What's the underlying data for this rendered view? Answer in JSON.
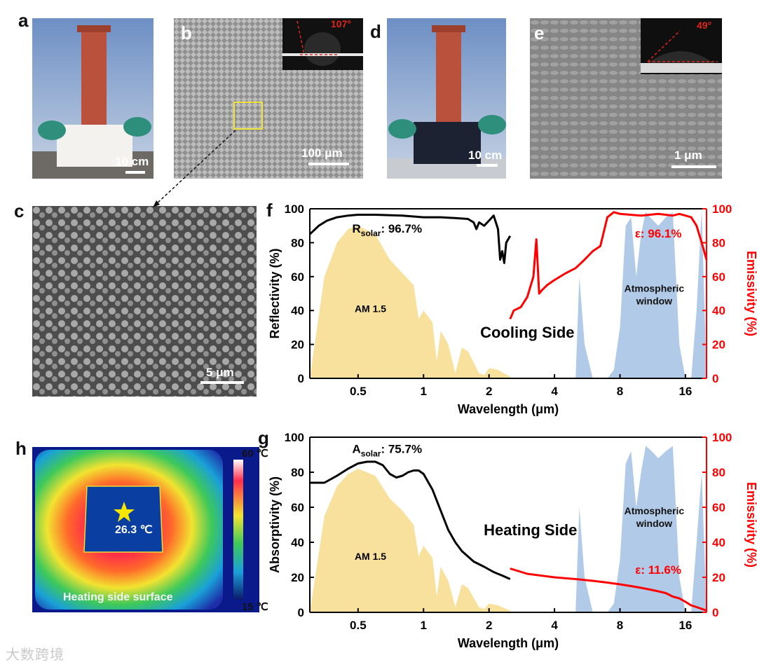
{
  "panel_labels": {
    "a": "a",
    "b": "b",
    "c": "c",
    "d": "d",
    "e": "e",
    "f": "f",
    "g": "g",
    "h": "h"
  },
  "panel_a": {
    "scale": "10 cm"
  },
  "panel_b": {
    "scale": "100 μm",
    "contact_angle": "107°"
  },
  "panel_c": {
    "scale": "5 μm"
  },
  "panel_d": {
    "scale": "10 cm"
  },
  "panel_e": {
    "scale": "1 μm",
    "contact_angle": "49°"
  },
  "panel_h": {
    "max_temp": "60 ℃",
    "min_temp": "15 ℃",
    "spot_temp": "26.3 ℃",
    "caption": "Heating side surface"
  },
  "colors": {
    "black_curve": "#000000",
    "red_curve": "#ff0000",
    "am15_fill": "#f7dc8c",
    "window_fill": "#a9c4e4"
  },
  "chart_data": [
    {
      "id": "f",
      "type": "line",
      "title": "Cooling Side",
      "xlabel": "Wavelength (μm)",
      "ylabel": "Reflectivity (%)",
      "ylabel_right": "Emissivity (%)",
      "x_scale": "log",
      "xlim": [
        0.3,
        20
      ],
      "ylim": [
        0,
        100
      ],
      "x_ticks": [
        0.5,
        1,
        2,
        4,
        8,
        16
      ],
      "x_tick_labels": [
        "0.5",
        "1",
        "2",
        "4",
        "8",
        "16"
      ],
      "y_ticks": [
        0,
        20,
        40,
        60,
        80,
        100
      ],
      "y_tick_labels": [
        "0",
        "20",
        "40",
        "60",
        "80",
        "100"
      ],
      "annotations": {
        "solar_label": "R",
        "solar_sub": "solar",
        "solar_value": ": 96.7%",
        "emis_label": "ε: 96.1%",
        "am15_label": "AM 1.5",
        "window_label1": "Atmospheric",
        "window_label2": "window"
      },
      "series": [
        {
          "name": "Reflectivity",
          "color": "#000000",
          "x": [
            0.3,
            0.33,
            0.36,
            0.4,
            0.45,
            0.5,
            0.6,
            0.8,
            1.0,
            1.2,
            1.4,
            1.6,
            1.7,
            1.75,
            1.8,
            1.9,
            2.0,
            2.1,
            2.2,
            2.25,
            2.3,
            2.35,
            2.4,
            2.5
          ],
          "y": [
            85,
            90,
            93,
            95,
            96,
            96.5,
            96.5,
            96,
            95,
            95,
            94.5,
            94,
            92,
            88,
            92,
            90,
            93,
            96,
            88,
            70,
            75,
            68,
            80,
            84
          ]
        },
        {
          "name": "Emissivity",
          "color": "#ff0000",
          "x": [
            2.5,
            2.6,
            2.8,
            3.0,
            3.2,
            3.3,
            3.4,
            3.5,
            3.7,
            4.0,
            4.5,
            5.0,
            5.5,
            6.0,
            6.5,
            7.0,
            7.5,
            8,
            10,
            12,
            14,
            15,
            16,
            17,
            18,
            19,
            20
          ],
          "y": [
            35,
            40,
            42,
            48,
            60,
            82,
            50,
            52,
            55,
            58,
            62,
            65,
            70,
            75,
            78,
            95,
            98,
            97,
            96,
            97,
            96,
            97,
            96,
            95,
            90,
            80,
            70
          ]
        }
      ],
      "am15": {
        "x": [
          0.3,
          0.35,
          0.4,
          0.45,
          0.5,
          0.6,
          0.7,
          0.8,
          0.9,
          0.95,
          1.0,
          1.1,
          1.15,
          1.2,
          1.3,
          1.4,
          1.5,
          1.6,
          1.8,
          1.9,
          2.0,
          2.2,
          2.5
        ],
        "y": [
          0,
          60,
          80,
          88,
          90,
          85,
          70,
          62,
          55,
          35,
          40,
          33,
          10,
          28,
          20,
          3,
          18,
          16,
          3,
          2,
          6,
          5,
          1
        ]
      },
      "window": {
        "x": [
          5,
          5.2,
          5.5,
          6,
          7,
          7.5,
          8,
          8.5,
          9,
          9.5,
          10,
          10.5,
          11,
          12,
          13,
          14,
          15,
          16,
          17,
          18,
          19,
          20
        ],
        "y": [
          0,
          60,
          20,
          0,
          0,
          5,
          30,
          90,
          95,
          60,
          85,
          98,
          95,
          90,
          95,
          98,
          20,
          0,
          0,
          40,
          100,
          0
        ]
      }
    },
    {
      "id": "g",
      "type": "line",
      "title": "Heating Side",
      "xlabel": "Wavelength (μm)",
      "ylabel": "Absorptivity (%)",
      "ylabel_right": "Emissivity (%)",
      "x_scale": "log",
      "xlim": [
        0.3,
        20
      ],
      "ylim": [
        0,
        100
      ],
      "x_ticks": [
        0.5,
        1,
        2,
        4,
        8,
        16
      ],
      "x_tick_labels": [
        "0.5",
        "1",
        "2",
        "4",
        "8",
        "16"
      ],
      "y_ticks": [
        0,
        20,
        40,
        60,
        80,
        100
      ],
      "y_tick_labels": [
        "0",
        "20",
        "40",
        "60",
        "80",
        "100"
      ],
      "annotations": {
        "solar_label": "A",
        "solar_sub": "solar",
        "solar_value": ": 75.7%",
        "emis_label": "ε: 11.6%",
        "am15_label": "AM 1.5",
        "window_label1": "Atmospheric",
        "window_label2": "window"
      },
      "series": [
        {
          "name": "Absorptivity",
          "color": "#000000",
          "x": [
            0.3,
            0.35,
            0.4,
            0.45,
            0.5,
            0.55,
            0.6,
            0.65,
            0.7,
            0.75,
            0.8,
            0.85,
            0.9,
            0.95,
            1.0,
            1.1,
            1.2,
            1.3,
            1.4,
            1.5,
            1.7,
            1.9,
            2.1,
            2.3,
            2.5
          ],
          "y": [
            74,
            74,
            78,
            82,
            85,
            86,
            86,
            84,
            79,
            77,
            78,
            80,
            81,
            81,
            79,
            70,
            58,
            47,
            40,
            35,
            29,
            26,
            23,
            21,
            19
          ]
        },
        {
          "name": "Emissivity",
          "color": "#ff0000",
          "x": [
            2.5,
            3,
            4,
            5,
            6,
            7,
            8,
            9,
            10,
            11,
            12,
            13,
            14,
            15,
            16,
            17,
            18,
            19,
            20
          ],
          "y": [
            25,
            22,
            20,
            19,
            18,
            17,
            16,
            15,
            14,
            13,
            12,
            11,
            9,
            8,
            6,
            4,
            3,
            2,
            1
          ]
        }
      ],
      "am15": {
        "x": [
          0.3,
          0.35,
          0.4,
          0.45,
          0.5,
          0.6,
          0.7,
          0.8,
          0.9,
          0.95,
          1.0,
          1.1,
          1.15,
          1.2,
          1.3,
          1.4,
          1.5,
          1.6,
          1.8,
          1.9,
          2.0,
          2.2,
          2.5
        ],
        "y": [
          0,
          55,
          72,
          79,
          82,
          78,
          65,
          58,
          50,
          32,
          38,
          31,
          9,
          26,
          18,
          3,
          16,
          14,
          3,
          2,
          5,
          4,
          1
        ]
      },
      "window": {
        "x": [
          5,
          5.2,
          5.5,
          6,
          7,
          7.5,
          8,
          8.5,
          9,
          9.5,
          10,
          10.5,
          11,
          12,
          13,
          14,
          15,
          16,
          17,
          18,
          19,
          20
        ],
        "y": [
          0,
          60,
          20,
          0,
          0,
          5,
          30,
          85,
          92,
          60,
          80,
          95,
          93,
          88,
          92,
          95,
          20,
          0,
          0,
          40,
          80,
          0
        ]
      }
    }
  ]
}
